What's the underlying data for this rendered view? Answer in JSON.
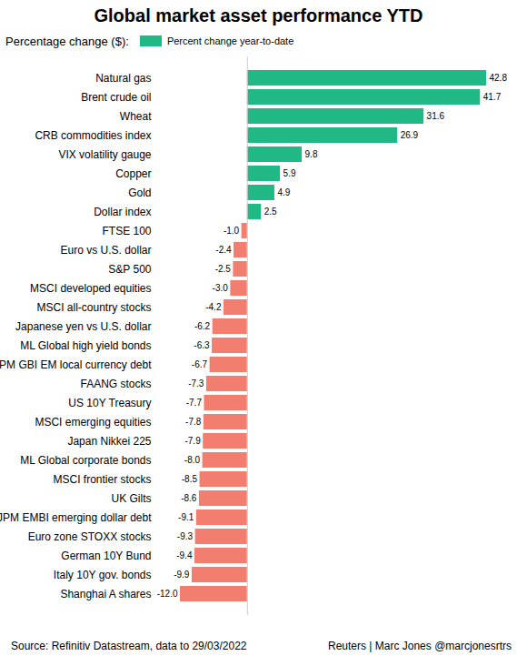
{
  "chart_data": {
    "type": "bar",
    "orientation": "horizontal",
    "title": "Global market asset performance YTD",
    "subtitle": "Percentage change ($):",
    "source": "Source: Refinitiv Datastream, data to 29/03/2022",
    "credit": "Reuters | Marc Jones @marcjonesrtrs",
    "categories": [
      "Natural gas",
      "Brent crude oil",
      "Wheat",
      "CRB commodities index",
      "VIX volatility gauge",
      "Copper",
      "Gold",
      "Dollar index",
      "FTSE 100",
      "Euro vs U.S. dollar",
      "S&P 500",
      "MSCI developed equities",
      "MSCI all-country stocks",
      "Japanese yen vs U.S. dollar",
      "ML Global high yield bonds",
      "JPM GBI EM local currency debt",
      "FAANG stocks",
      "US 10Y Treasury",
      "MSCI emerging equities",
      "Japan Nikkei 225",
      "ML Global corporate bonds",
      "MSCI frontier stocks",
      "UK Gilts",
      "JPM EMBI emerging dollar debt",
      "Euro zone STOXX stocks",
      "German 10Y Bund",
      "Italy 10Y gov. bonds",
      "Shanghai A shares"
    ],
    "series": [
      {
        "name": "Percent change year-to-date",
        "color": "#20b985",
        "values": [
          42.8,
          41.7,
          31.6,
          26.9,
          9.8,
          5.9,
          4.9,
          2.5,
          -1.0,
          -2.4,
          -2.5,
          -3.0,
          -4.2,
          -6.2,
          -6.3,
          -6.7,
          -7.3,
          -7.7,
          -7.8,
          -7.9,
          -8.0,
          -8.5,
          -8.6,
          -9.1,
          -9.3,
          -9.4,
          -9.9,
          -12.0
        ],
        "value_labels": [
          "42.8",
          "41.7",
          "31.6",
          "26.9",
          "9.8",
          "5.9",
          "4.9",
          "2.5",
          "-1.0",
          "-2.4",
          "-2.5",
          "-3.0",
          "-4.2",
          "-6.2",
          "-6.3",
          "-6.7",
          "-7.3",
          "-7.7",
          "-7.8",
          "-7.9",
          "-8.0",
          "-8.5",
          "-8.6",
          "-9.1",
          "-9.3",
          "-9.4",
          "-9.9",
          "-12.0"
        ],
        "colors": [
          "#20b985",
          "#20b985",
          "#20b985",
          "#20b985",
          "#20b985",
          "#20b985",
          "#20b985",
          "#20b985",
          "#f27e70",
          "#f27e70",
          "#f27e70",
          "#f27e70",
          "#f27e70",
          "#f27e70",
          "#f27e70",
          "#f27e70",
          "#f27e70",
          "#f27e70",
          "#f27e70",
          "#f27e70",
          "#f27e70",
          "#f27e70",
          "#f27e70",
          "#f27e70",
          "#f27e70",
          "#f27e70",
          "#f27e70",
          "#f27e70"
        ]
      }
    ],
    "data_labels": true,
    "tick_labels": "y",
    "grid": false,
    "legend": "top-left"
  }
}
